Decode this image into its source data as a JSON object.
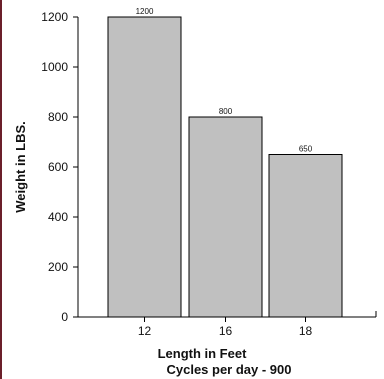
{
  "chart_data": {
    "type": "bar",
    "categories": [
      "12",
      "16",
      "18"
    ],
    "values": [
      1200,
      800,
      650
    ],
    "data_labels": [
      "1200",
      "800",
      "650"
    ],
    "title": "",
    "xlabel": "Length in Feet",
    "xlabel_line2": "Cycles per day - 900",
    "ylabel": "Weight in LBS.",
    "ylim": [
      0,
      1200
    ],
    "yticks": [
      0,
      200,
      400,
      600,
      800,
      1000,
      1200
    ],
    "grid": false,
    "legend": "none"
  },
  "colors": {
    "bar_fill": "#c0c0c0",
    "bar_stroke": "#000000",
    "axis": "#000000",
    "text": "#111111",
    "left_border": "#6b1f2a"
  }
}
